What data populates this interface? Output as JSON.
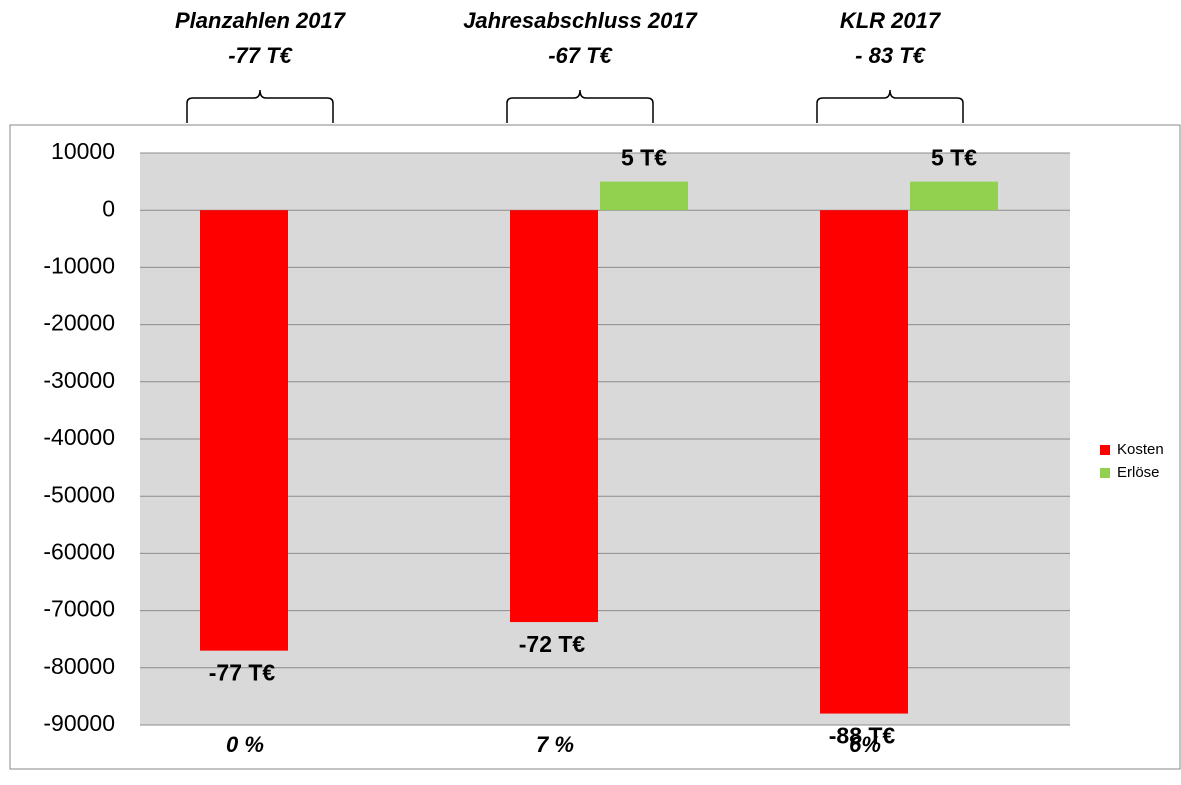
{
  "chart_data": {
    "type": "bar",
    "categories": [
      "0 %",
      "7 %",
      "6%"
    ],
    "series": [
      {
        "name": "Kosten",
        "color": "#ff0000",
        "values": [
          -77000,
          -72000,
          -88000
        ],
        "value_labels": [
          "-77 T€",
          "-72 T€",
          "-88 T€"
        ]
      },
      {
        "name": "Erlöse",
        "color": "#92d050",
        "values": [
          null,
          5000,
          5000
        ],
        "value_labels": [
          null,
          "5 T€",
          "5 T€"
        ]
      }
    ],
    "annotations": [
      {
        "lines": [
          "Planzahlen 2017",
          "-77 T€"
        ]
      },
      {
        "lines": [
          "Jahresabschluss 2017",
          "-67 T€"
        ]
      },
      {
        "lines": [
          "KLR 2017",
          "- 83 T€"
        ]
      }
    ],
    "ylim": [
      -90000,
      10000
    ],
    "yticks": [
      10000,
      0,
      -10000,
      -20000,
      -30000,
      -40000,
      -50000,
      -60000,
      -70000,
      -80000,
      -90000
    ],
    "grid": true,
    "legend": "right"
  }
}
